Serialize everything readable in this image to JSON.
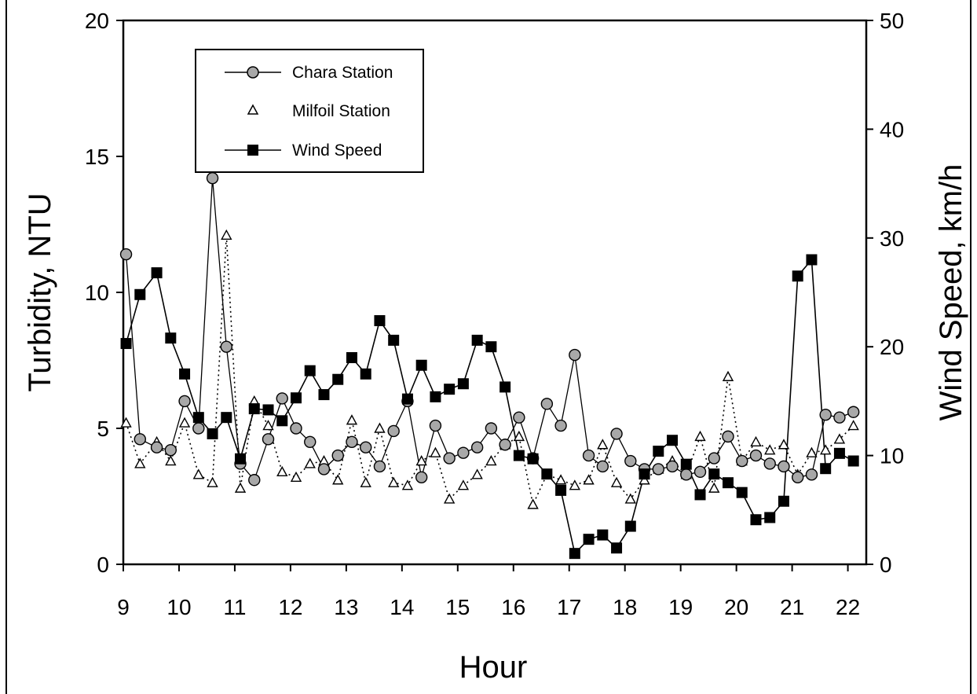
{
  "chart_data": {
    "type": "line",
    "xlabel": "Hour",
    "ylabel": "Turbidity, NTU",
    "y2label": "Wind Speed, km/h",
    "xlim": [
      9,
      22.1
    ],
    "ylim": [
      0,
      20
    ],
    "y2lim": [
      0,
      50
    ],
    "x_ticks": [
      "9",
      "10",
      "11",
      "12",
      "13",
      "14",
      "15",
      "16",
      "17",
      "18",
      "19",
      "20",
      "21",
      "22"
    ],
    "y_ticks": [
      "0",
      "5",
      "10",
      "15",
      "20"
    ],
    "y2_ticks": [
      "0",
      "10",
      "20",
      "30",
      "40",
      "50"
    ],
    "legend_position": "top-left",
    "series": [
      {
        "name": "Chara Station",
        "axis": "left",
        "marker": "circle",
        "color": "#a8a8a8",
        "line": "solid",
        "points": [
          [
            9.05,
            11.4
          ],
          [
            9.3,
            4.6
          ],
          [
            9.6,
            4.3
          ],
          [
            9.85,
            4.2
          ],
          [
            10.1,
            6.0
          ],
          [
            10.35,
            5.0
          ],
          [
            10.6,
            14.2
          ],
          [
            10.85,
            8.0
          ],
          [
            11.1,
            3.7
          ],
          [
            11.35,
            3.1
          ],
          [
            11.6,
            4.6
          ],
          [
            11.85,
            6.1
          ],
          [
            12.1,
            5.0
          ],
          [
            12.35,
            4.5
          ],
          [
            12.6,
            3.5
          ],
          [
            12.85,
            4.0
          ],
          [
            13.1,
            4.5
          ],
          [
            13.35,
            4.3
          ],
          [
            13.6,
            3.6
          ],
          [
            13.85,
            4.9
          ],
          [
            14.1,
            6.0
          ],
          [
            14.35,
            3.2
          ],
          [
            14.6,
            5.1
          ],
          [
            14.85,
            3.9
          ],
          [
            15.1,
            4.1
          ],
          [
            15.35,
            4.3
          ],
          [
            15.6,
            5.0
          ],
          [
            15.85,
            4.4
          ],
          [
            16.1,
            5.4
          ],
          [
            16.35,
            3.9
          ],
          [
            16.6,
            5.9
          ],
          [
            16.85,
            5.1
          ],
          [
            17.1,
            7.7
          ],
          [
            17.35,
            4.0
          ],
          [
            17.6,
            3.6
          ],
          [
            17.85,
            4.8
          ],
          [
            18.1,
            3.8
          ],
          [
            18.35,
            3.5
          ],
          [
            18.6,
            3.5
          ],
          [
            18.85,
            3.6
          ],
          [
            19.1,
            3.3
          ],
          [
            19.35,
            3.4
          ],
          [
            19.6,
            3.9
          ],
          [
            19.85,
            4.7
          ],
          [
            20.1,
            3.8
          ],
          [
            20.35,
            4.0
          ],
          [
            20.6,
            3.7
          ],
          [
            20.85,
            3.6
          ],
          [
            21.1,
            3.2
          ],
          [
            21.35,
            3.3
          ],
          [
            21.6,
            5.5
          ],
          [
            21.85,
            5.4
          ],
          [
            22.1,
            5.6
          ]
        ]
      },
      {
        "name": "Milfoil Station",
        "axis": "left",
        "marker": "triangle",
        "color": "#ffffff",
        "line": "dotted",
        "points": [
          [
            9.05,
            5.2
          ],
          [
            9.3,
            3.7
          ],
          [
            9.6,
            4.5
          ],
          [
            9.85,
            3.8
          ],
          [
            10.1,
            5.2
          ],
          [
            10.35,
            3.3
          ],
          [
            10.6,
            3.0
          ],
          [
            10.85,
            12.1
          ],
          [
            11.1,
            2.8
          ],
          [
            11.35,
            6.0
          ],
          [
            11.6,
            5.1
          ],
          [
            11.85,
            3.4
          ],
          [
            12.1,
            3.2
          ],
          [
            12.35,
            3.7
          ],
          [
            12.6,
            3.8
          ],
          [
            12.85,
            3.1
          ],
          [
            13.1,
            5.3
          ],
          [
            13.35,
            3.0
          ],
          [
            13.6,
            5.0
          ],
          [
            13.85,
            3.0
          ],
          [
            14.1,
            2.9
          ],
          [
            14.35,
            3.8
          ],
          [
            14.6,
            4.1
          ],
          [
            14.85,
            2.4
          ],
          [
            15.1,
            2.9
          ],
          [
            15.35,
            3.3
          ],
          [
            15.6,
            3.8
          ],
          [
            15.85,
            4.4
          ],
          [
            16.1,
            4.7
          ],
          [
            16.35,
            2.2
          ],
          [
            16.6,
            3.3
          ],
          [
            16.85,
            3.1
          ],
          [
            17.1,
            2.9
          ],
          [
            17.35,
            3.1
          ],
          [
            17.6,
            4.4
          ],
          [
            17.85,
            3.0
          ],
          [
            18.1,
            2.4
          ],
          [
            18.35,
            3.1
          ],
          [
            18.6,
            3.5
          ],
          [
            18.85,
            3.8
          ],
          [
            19.1,
            3.3
          ],
          [
            19.35,
            4.7
          ],
          [
            19.6,
            2.8
          ],
          [
            19.85,
            6.9
          ],
          [
            20.1,
            3.8
          ],
          [
            20.35,
            4.5
          ],
          [
            20.6,
            4.2
          ],
          [
            20.85,
            4.4
          ],
          [
            21.1,
            3.3
          ],
          [
            21.35,
            4.1
          ],
          [
            21.6,
            4.2
          ],
          [
            21.85,
            4.6
          ],
          [
            22.1,
            5.1
          ]
        ]
      },
      {
        "name": "Wind Speed",
        "axis": "right",
        "marker": "square",
        "color": "#000000",
        "line": "solid",
        "points": [
          [
            9.05,
            20.3
          ],
          [
            9.3,
            24.8
          ],
          [
            9.6,
            26.8
          ],
          [
            9.85,
            20.8
          ],
          [
            10.1,
            17.5
          ],
          [
            10.35,
            13.5
          ],
          [
            10.6,
            12.0
          ],
          [
            10.85,
            13.5
          ],
          [
            11.1,
            9.7
          ],
          [
            11.35,
            14.3
          ],
          [
            11.6,
            14.2
          ],
          [
            11.85,
            13.2
          ],
          [
            12.1,
            15.3
          ],
          [
            12.35,
            17.8
          ],
          [
            12.6,
            15.6
          ],
          [
            12.85,
            17.0
          ],
          [
            13.1,
            19.0
          ],
          [
            13.35,
            17.5
          ],
          [
            13.6,
            22.4
          ],
          [
            13.85,
            20.6
          ],
          [
            14.1,
            15.2
          ],
          [
            14.35,
            18.3
          ],
          [
            14.6,
            15.4
          ],
          [
            14.85,
            16.1
          ],
          [
            15.1,
            16.6
          ],
          [
            15.35,
            20.6
          ],
          [
            15.6,
            20.0
          ],
          [
            15.85,
            16.3
          ],
          [
            16.1,
            10.0
          ],
          [
            16.35,
            9.7
          ],
          [
            16.6,
            8.3
          ],
          [
            16.85,
            6.8
          ],
          [
            17.1,
            1.0
          ],
          [
            17.35,
            2.3
          ],
          [
            17.6,
            2.7
          ],
          [
            17.85,
            1.5
          ],
          [
            18.1,
            3.5
          ],
          [
            18.35,
            8.3
          ],
          [
            18.6,
            10.4
          ],
          [
            18.85,
            11.4
          ],
          [
            19.1,
            9.2
          ],
          [
            19.35,
            6.4
          ],
          [
            19.6,
            8.3
          ],
          [
            19.85,
            7.5
          ],
          [
            20.1,
            6.6
          ],
          [
            20.35,
            4.1
          ],
          [
            20.6,
            4.3
          ],
          [
            20.85,
            5.8
          ],
          [
            21.1,
            26.5
          ],
          [
            21.35,
            28.0
          ],
          [
            21.6,
            8.8
          ],
          [
            21.85,
            10.2
          ],
          [
            22.1,
            9.5
          ]
        ]
      }
    ]
  }
}
